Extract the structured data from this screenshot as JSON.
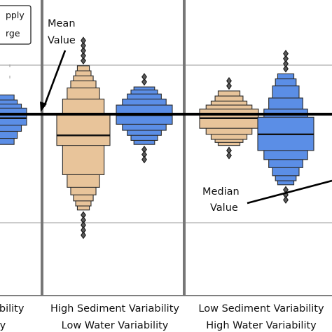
{
  "chart_data": {
    "type": "boxen",
    "title": "",
    "ylabel": "",
    "mean_line_value": 0,
    "ylim": [
      -2.6,
      1.6
    ],
    "legend": {
      "placement": "top-left",
      "entries": [
        {
          "label": "pply",
          "color": "#e8c49a"
        },
        {
          "label": "rge",
          "color": "#5b8ee6"
        }
      ]
    },
    "groups": [
      {
        "label_line1": "ability",
        "label_line2": "ty"
      },
      {
        "label_line1": "High Sediment Variability",
        "label_line2": "Low Water Variability"
      },
      {
        "label_line1": "Low Sediment Variability",
        "label_line2": "High Water Variability"
      }
    ],
    "series": [
      {
        "group": 0,
        "color": "#5b8ee6",
        "median": -0.08,
        "levels": [
          [
            -0.22,
            0.12
          ],
          [
            -0.34,
            0.2
          ],
          [
            -0.48,
            0.28
          ],
          [
            -0.6,
            0.38
          ]
        ],
        "outliers": []
      },
      {
        "group": 1,
        "color": "#e8c49a",
        "median": -0.42,
        "levels": [
          [
            -0.62,
            0.0
          ],
          [
            -1.2,
            0.3
          ],
          [
            -1.45,
            0.52
          ],
          [
            -1.6,
            0.66
          ],
          [
            -1.72,
            0.76
          ],
          [
            -1.82,
            0.86
          ],
          [
            -1.9,
            0.96
          ]
        ],
        "outliers": [
          1.06,
          1.16,
          1.26,
          1.36,
          1.46,
          -2.0,
          -2.1,
          -2.2,
          -2.3,
          -2.4
        ]
      },
      {
        "group": 1,
        "color": "#5b8ee6",
        "median": -0.02,
        "levels": [
          [
            -0.2,
            0.18
          ],
          [
            -0.32,
            0.3
          ],
          [
            -0.42,
            0.4
          ],
          [
            -0.52,
            0.48
          ],
          [
            -0.6,
            0.54
          ]
        ],
        "outliers": [
          0.64,
          0.74,
          -0.7,
          -0.8,
          -0.9
        ]
      },
      {
        "group": 2,
        "color": "#e8c49a",
        "median": -0.08,
        "levels": [
          [
            -0.28,
            0.1
          ],
          [
            -0.4,
            0.18
          ],
          [
            -0.5,
            0.26
          ],
          [
            -0.56,
            0.36
          ],
          [
            -0.62,
            0.46
          ]
        ],
        "outliers": [
          0.56,
          0.66,
          -0.72,
          -0.82
        ]
      },
      {
        "group": 2,
        "color": "#5b8ee6",
        "median": -0.4,
        "levels": [
          [
            -0.72,
            -0.06
          ],
          [
            -0.9,
            0.1
          ],
          [
            -1.06,
            0.32
          ],
          [
            -1.22,
            0.56
          ],
          [
            -1.32,
            0.7
          ],
          [
            -1.4,
            0.8
          ]
        ],
        "outliers": [
          0.9,
          1.0,
          1.1,
          1.2,
          -1.5,
          -1.6,
          -1.7
        ]
      }
    ],
    "annotations": [
      {
        "line1": "Mean",
        "line2": "Value"
      },
      {
        "line1": "Median",
        "line2": "Value"
      }
    ]
  }
}
